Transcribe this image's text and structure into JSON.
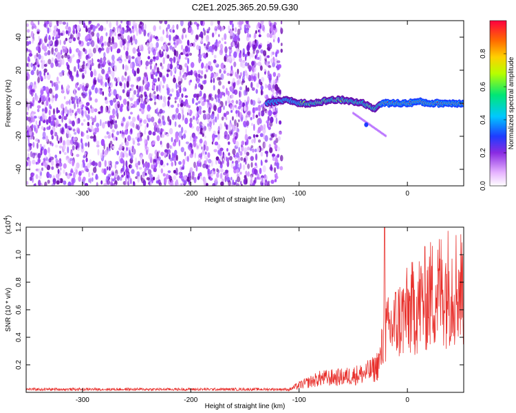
{
  "title": "C2E1.2025.365.20.59.G30",
  "chart_data": [
    {
      "type": "heatmap",
      "xlabel": "Height of straight line (km)",
      "ylabel": "Frequency (Hz)",
      "xlim": [
        -352,
        52
      ],
      "ylim": [
        -50,
        50
      ],
      "xticks": [
        -300,
        -200,
        -100,
        0
      ],
      "yticks": [
        -40,
        -20,
        0,
        20,
        40
      ],
      "noise_region_x": [
        -352,
        -128
      ],
      "signal_trace": {
        "x": [
          -130,
          -120,
          -110,
          -100,
          -90,
          -80,
          -70,
          -60,
          -50,
          -40,
          -35,
          -30,
          -25,
          -20,
          -10,
          0,
          10,
          20,
          30,
          40,
          50
        ],
        "freq": [
          0,
          1,
          2,
          0,
          0,
          1,
          2,
          2,
          1,
          0,
          -2,
          -3,
          0,
          0,
          0,
          0,
          1,
          0,
          0,
          0,
          0
        ]
      },
      "colorbar": {
        "label": "Normalized spectral amplitude",
        "ticks": [
          0.0,
          0.2,
          0.4,
          0.6,
          0.8
        ],
        "range": [
          0,
          1
        ]
      }
    },
    {
      "type": "line",
      "xlabel": "Height of straight line (km)",
      "ylabel": "SNR (10 * v/v)",
      "yscale_label": "(x10",
      "yscale_exp": "4",
      "yscale_close": ")",
      "xlim": [
        -352,
        52
      ],
      "ylim": [
        0,
        1.2
      ],
      "xticks": [
        -300,
        -200,
        -100,
        0
      ],
      "yticks": [
        0.2,
        0.4,
        0.6,
        0.8,
        1.0,
        1.2
      ],
      "color": "#e8302c",
      "envelope": {
        "x": [
          -352,
          -200,
          -110,
          -100,
          -80,
          -60,
          -40,
          -30,
          -25,
          -22,
          -20,
          -15,
          -10,
          0,
          10,
          20,
          30,
          40,
          52
        ],
        "y": [
          0.02,
          0.02,
          0.02,
          0.06,
          0.12,
          0.13,
          0.16,
          0.2,
          0.28,
          0.45,
          0.5,
          0.55,
          0.6,
          0.68,
          0.75,
          0.82,
          0.88,
          0.92,
          0.9
        ]
      },
      "peak": {
        "x": -21,
        "y": 1.2
      }
    }
  ]
}
